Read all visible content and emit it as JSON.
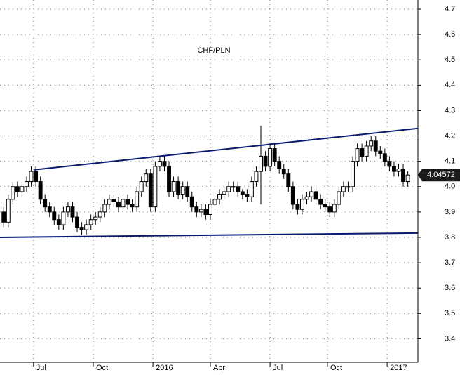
{
  "chart_data": {
    "type": "candlestick",
    "title": "CHF/PLN",
    "open": [
      3.9,
      3.86,
      3.95,
      4.0,
      3.98,
      4.0,
      4.02,
      4.06,
      4.02,
      3.95,
      3.92,
      3.9,
      3.87,
      3.85,
      3.9,
      3.92,
      3.88,
      3.84,
      3.83,
      3.85,
      3.87,
      3.88,
      3.9,
      3.93,
      3.95,
      3.94,
      3.92,
      3.95,
      3.93,
      3.92,
      3.98,
      4.02,
      4.05,
      3.92,
      4.08,
      4.1,
      4.08,
      3.98,
      4.02,
      3.97,
      4.0,
      3.96,
      3.92,
      3.9,
      3.91,
      3.89,
      3.93,
      3.95,
      3.97,
      3.98,
      4.0,
      4.0,
      3.98,
      3.97,
      3.96,
      4.02,
      4.06,
      4.12,
      4.08,
      4.15,
      4.1,
      4.07,
      4.05,
      4.0,
      3.93,
      3.91,
      3.95,
      3.96,
      3.98,
      3.95,
      3.93,
      3.92,
      3.9,
      3.93,
      3.98,
      4.0,
      4.0,
      4.1,
      4.15,
      4.12,
      4.16,
      4.18,
      4.14,
      4.13,
      4.1,
      4.08,
      4.06,
      4.07,
      4.02
    ],
    "high": [
      3.92,
      3.97,
      4.02,
      4.02,
      4.02,
      4.04,
      4.08,
      4.08,
      4.04,
      3.97,
      3.94,
      3.92,
      3.89,
      3.92,
      3.94,
      3.94,
      3.9,
      3.86,
      3.87,
      3.89,
      3.9,
      3.92,
      3.95,
      3.97,
      3.97,
      3.96,
      3.97,
      3.97,
      3.95,
      4.0,
      4.04,
      4.07,
      4.07,
      4.1,
      4.12,
      4.12,
      4.1,
      4.04,
      4.04,
      4.02,
      4.02,
      3.98,
      3.94,
      3.93,
      3.93,
      3.95,
      3.97,
      3.99,
      4.0,
      4.02,
      4.02,
      4.02,
      3.99,
      3.99,
      4.04,
      4.08,
      4.24,
      4.14,
      4.17,
      4.17,
      4.12,
      4.09,
      4.07,
      4.02,
      3.95,
      3.97,
      3.98,
      4.0,
      4.0,
      3.97,
      3.95,
      3.94,
      3.95,
      4.0,
      4.02,
      4.02,
      4.12,
      4.17,
      4.17,
      4.18,
      4.2,
      4.2,
      4.16,
      4.15,
      4.12,
      4.1,
      4.09,
      4.09,
      4.06
    ],
    "low": [
      3.84,
      3.84,
      3.93,
      3.96,
      3.96,
      3.98,
      4.0,
      4.0,
      3.93,
      3.9,
      3.88,
      3.85,
      3.83,
      3.83,
      3.88,
      3.86,
      3.82,
      3.81,
      3.81,
      3.83,
      3.85,
      3.86,
      3.88,
      3.91,
      3.92,
      3.9,
      3.9,
      3.91,
      3.9,
      3.9,
      3.96,
      4.0,
      3.9,
      3.9,
      4.06,
      4.06,
      3.96,
      3.96,
      3.95,
      3.95,
      3.94,
      3.9,
      3.88,
      3.88,
      3.87,
      3.87,
      3.91,
      3.93,
      3.95,
      3.96,
      3.98,
      3.96,
      3.95,
      3.94,
      3.94,
      4.0,
      3.93,
      4.06,
      4.06,
      4.08,
      4.05,
      4.03,
      3.98,
      3.91,
      3.89,
      3.89,
      3.93,
      3.94,
      3.93,
      3.91,
      3.9,
      3.88,
      3.88,
      3.91,
      3.96,
      3.98,
      3.98,
      4.08,
      4.1,
      4.1,
      4.14,
      4.12,
      4.11,
      4.08,
      4.06,
      4.04,
      4.04,
      4.0,
      4.0
    ],
    "close": [
      3.86,
      3.95,
      4.0,
      3.98,
      4.0,
      4.02,
      4.06,
      4.02,
      3.95,
      3.92,
      3.9,
      3.87,
      3.85,
      3.9,
      3.92,
      3.88,
      3.84,
      3.83,
      3.85,
      3.87,
      3.88,
      3.9,
      3.93,
      3.95,
      3.94,
      3.92,
      3.95,
      3.93,
      3.92,
      3.98,
      4.02,
      4.05,
      3.92,
      4.08,
      4.1,
      4.08,
      3.98,
      4.02,
      3.97,
      4.0,
      3.96,
      3.92,
      3.9,
      3.91,
      3.89,
      3.93,
      3.95,
      3.97,
      3.98,
      4.0,
      4.0,
      3.98,
      3.97,
      3.96,
      4.02,
      4.06,
      4.12,
      4.08,
      4.15,
      4.1,
      4.07,
      4.05,
      4.0,
      3.93,
      3.91,
      3.95,
      3.96,
      3.98,
      3.95,
      3.93,
      3.92,
      3.9,
      3.93,
      3.98,
      4.0,
      4.0,
      4.1,
      4.15,
      4.12,
      4.16,
      4.18,
      4.14,
      4.13,
      4.1,
      4.08,
      4.06,
      4.07,
      4.02,
      4.046
    ],
    "xlim": [
      -0.8,
      90.2
    ],
    "xticks": [
      {
        "value": 6.5,
        "label": "Jul"
      },
      {
        "value": 19.5,
        "label": "Oct"
      },
      {
        "value": 32.5,
        "label": "2016"
      },
      {
        "value": 45,
        "label": "Apr"
      },
      {
        "value": 58,
        "label": "Jul"
      },
      {
        "value": 70.5,
        "label": "Oct"
      },
      {
        "value": 83.5,
        "label": "2017"
      }
    ],
    "ylim": [
      3.307,
      4.736
    ],
    "yticks": [
      3.4,
      3.5,
      3.6,
      3.7,
      3.8,
      3.9,
      {
        "value": 4.0,
        "label": "4.0"
      },
      4.1,
      4.2,
      4.3,
      4.4,
      4.5,
      4.6,
      4.7
    ],
    "grid": true,
    "up_color": "#ffffff",
    "down_color": "#000000",
    "trend_lines": [
      {
        "x": [
          6.5,
          90.2
        ],
        "y": [
          4.066,
          4.23
        ],
        "color": "#0a1a6e"
      },
      {
        "x": [
          -0.8,
          90.2
        ],
        "y": [
          3.8,
          3.817
        ],
        "color": "#0a1a6e"
      }
    ],
    "last_price": 4.04572
  }
}
